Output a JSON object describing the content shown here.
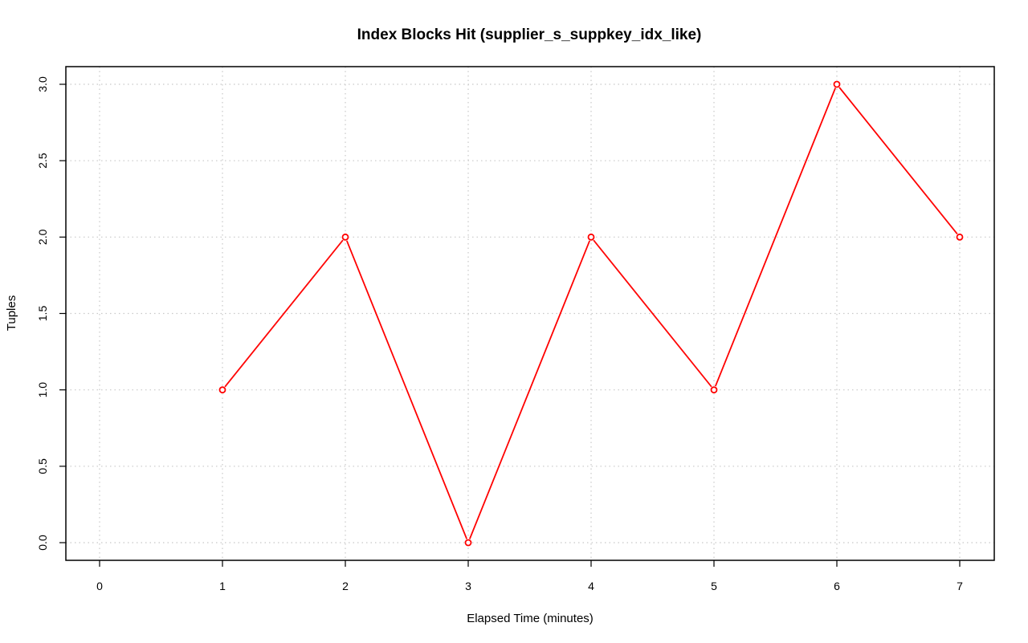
{
  "chart_data": {
    "type": "line",
    "title": "Index Blocks Hit (supplier_s_suppkey_idx_like)",
    "xlabel": "Elapsed Time (minutes)",
    "ylabel": "Tuples",
    "x": [
      1,
      2,
      3,
      4,
      5,
      6,
      7
    ],
    "y": [
      1.0,
      2.0,
      0.0,
      2.0,
      1.0,
      3.0,
      2.0
    ],
    "xlim": [
      0,
      7
    ],
    "ylim": [
      0,
      3
    ],
    "xticks": [
      "0",
      "1",
      "2",
      "3",
      "4",
      "5",
      "6",
      "7"
    ],
    "yticks": [
      "0.0",
      "0.5",
      "1.0",
      "1.5",
      "2.0",
      "2.5",
      "3.0"
    ],
    "grid": true,
    "line_color": "#ff0000",
    "marker": "open-circle"
  }
}
